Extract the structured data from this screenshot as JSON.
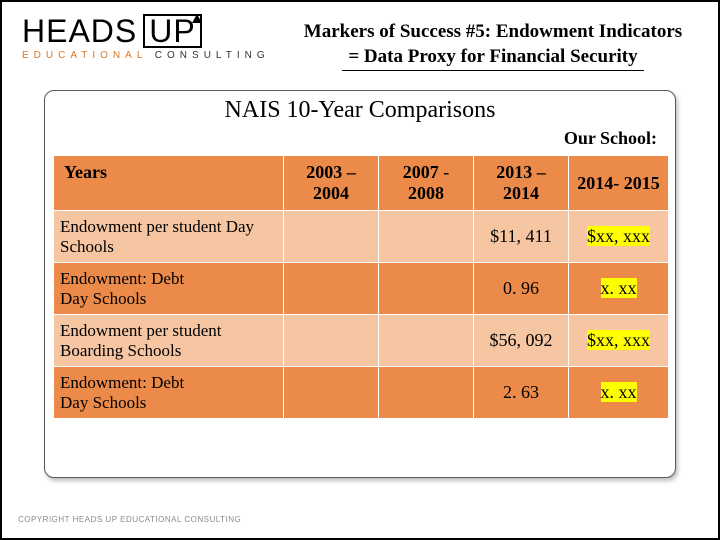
{
  "logo": {
    "main_left": "HEADS",
    "main_right": "UP",
    "sub_left": "EDUCATIONAL",
    "sub_right": "CONSULTING"
  },
  "title": {
    "line1": "Markers of Success #5: Endowment Indicators",
    "line2": "=  Data Proxy for Financial Security"
  },
  "card": {
    "title": "NAIS 10-Year Comparisons",
    "our_school": "Our  School:"
  },
  "styling": {
    "header_bg": "#ec8a4a",
    "row_dark": "#ec8a4a",
    "row_light": "#f6c6a2",
    "highlight": "#ffff00",
    "border": "#ffffff",
    "card_border": "#5a5a5a",
    "logo_orange": "#d97728"
  },
  "table": {
    "years_label": "Years",
    "columns": [
      "2003 – 2004",
      "2007 - 2008",
      "2013 – 2014",
      "2014- 2015"
    ],
    "rows": [
      {
        "label": "Endowment per student Day Schools",
        "cells": [
          "",
          "",
          "$11, 411",
          "$xx, xxx"
        ],
        "hl": [
          false,
          false,
          false,
          true
        ]
      },
      {
        "label": "Endowment: Debt\nDay Schools",
        "cells": [
          "",
          "",
          "0. 96",
          "x. xx"
        ],
        "hl": [
          false,
          false,
          false,
          true
        ]
      },
      {
        "label": "Endowment per student Boarding Schools",
        "cells": [
          "",
          "",
          "$56, 092",
          "$xx, xxx"
        ],
        "hl": [
          false,
          false,
          false,
          true
        ]
      },
      {
        "label": "Endowment: Debt\nDay Schools",
        "cells": [
          "",
          "",
          "2. 63",
          "x. xx"
        ],
        "hl": [
          false,
          false,
          false,
          true
        ]
      }
    ]
  },
  "footer": {
    "copyright": "COPYRIGHT HEADS UP EDUCATIONAL CONSULTING"
  }
}
